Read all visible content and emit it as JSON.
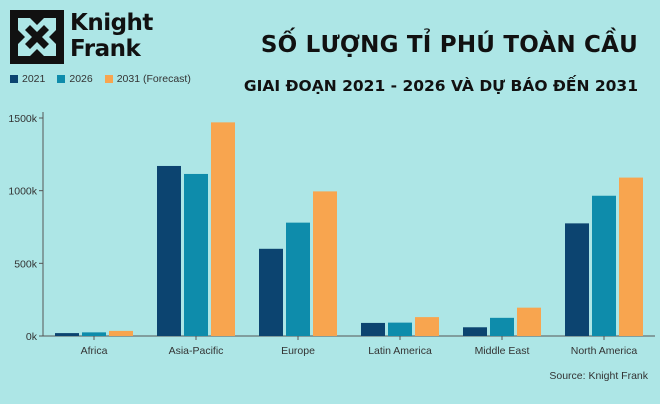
{
  "logo": {
    "line1": "Knight",
    "line2": "Frank"
  },
  "title": "SỐ LƯỢNG TỈ PHÚ TOÀN CẦU",
  "subtitle": "GIAI ĐOẠN 2021 - 2026 VÀ DỰ BÁO ĐẾN 2031",
  "source": "Source: Knight Frank",
  "colors": {
    "background": "#ade6e6",
    "s2021": "#0c4470",
    "s2026": "#0e8cab",
    "s2031": "#f8a54f"
  },
  "chart_data": {
    "type": "bar",
    "categories": [
      "Africa",
      "Asia-Pacific",
      "Europe",
      "Latin America",
      "Middle East",
      "North America"
    ],
    "series": [
      {
        "name": "2021",
        "color": "#0c4470",
        "values": [
          20,
          1170,
          600,
          90,
          60,
          775
        ]
      },
      {
        "name": "2026",
        "color": "#0e8cab",
        "values": [
          25,
          1115,
          780,
          92,
          125,
          965
        ]
      },
      {
        "name": "2031 (Forecast)",
        "color": "#f8a54f",
        "values": [
          35,
          1470,
          995,
          130,
          195,
          1090
        ]
      }
    ],
    "yticks": [
      "0k",
      "500k",
      "1000k",
      "1500k"
    ],
    "ytick_values": [
      0,
      500,
      1000,
      1500
    ],
    "ylim": [
      0,
      1500
    ],
    "legend_position": "top-left",
    "grid": false
  }
}
